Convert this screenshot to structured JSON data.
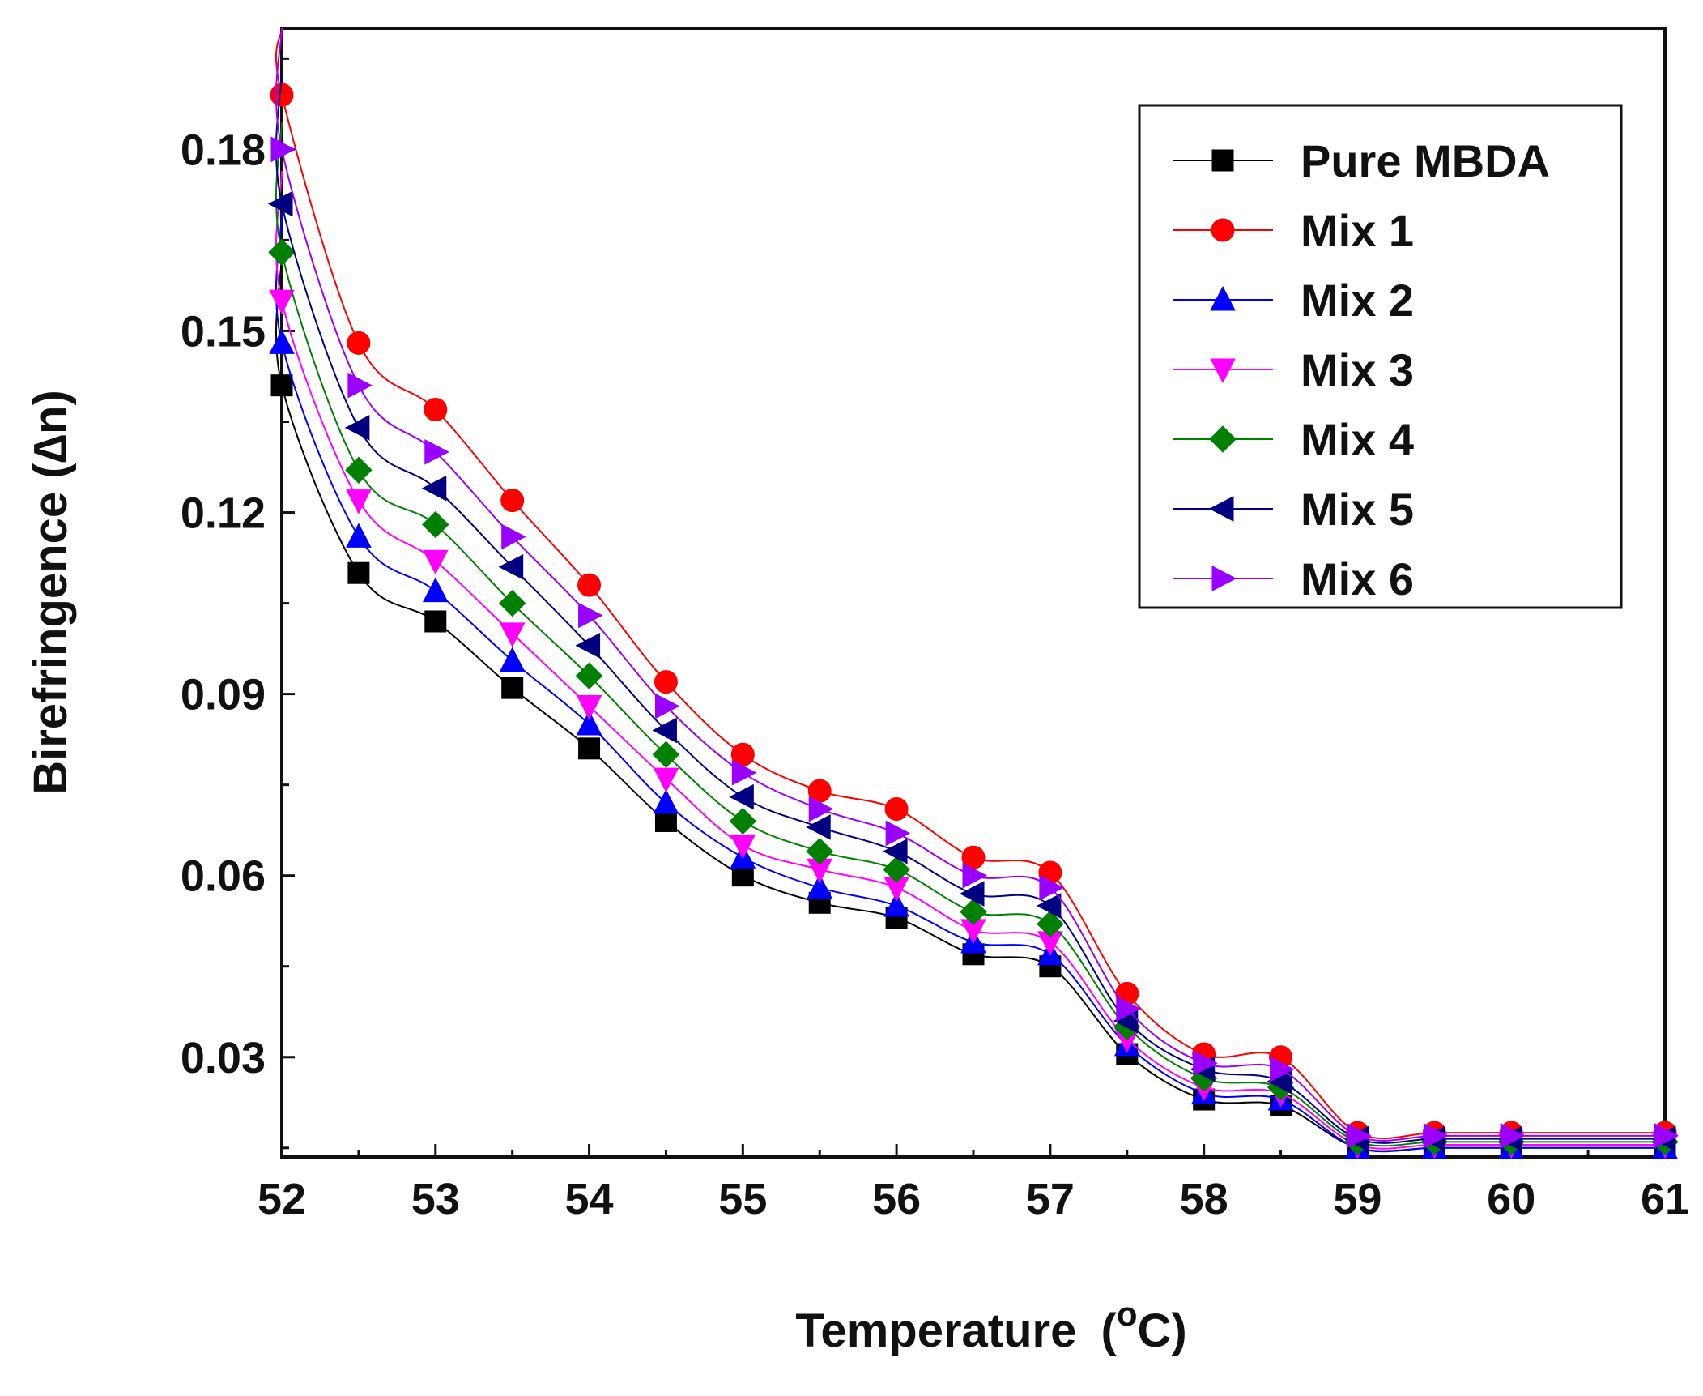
{
  "chart_data": {
    "type": "line",
    "title": "",
    "xlabel": "Temperature",
    "xlabel_unit_prefix": "(",
    "xlabel_unit_sup": "o",
    "xlabel_unit_suffix": "C)",
    "ylabel": "Birefringence (∆n)",
    "xlim": [
      52,
      61
    ],
    "ylim": [
      0.0135,
      0.2
    ],
    "x_ticks": [
      52,
      53,
      54,
      55,
      56,
      57,
      58,
      59,
      60,
      61
    ],
    "x_tick_labels": [
      "52",
      "53",
      "54",
      "55",
      "56",
      "57",
      "58",
      "59",
      "60",
      "61"
    ],
    "y_ticks": [
      0.03,
      0.06,
      0.09,
      0.12,
      0.15,
      0.18
    ],
    "y_tick_labels": [
      "0.03",
      "0.06",
      "0.09",
      "0.12",
      "0.15",
      "0.18"
    ],
    "legend_position": "top-right",
    "x": [
      52,
      52.5,
      53,
      53.5,
      54,
      54.5,
      55,
      55.5,
      56,
      56.5,
      57,
      57.5,
      58,
      58.5,
      59,
      59.5,
      60,
      61
    ],
    "series": [
      {
        "name": "Pure MBDA",
        "color": "#000000",
        "marker": "square",
        "values": [
          0.141,
          0.11,
          0.102,
          0.091,
          0.081,
          0.069,
          0.06,
          0.0555,
          0.053,
          0.047,
          0.045,
          0.0305,
          0.023,
          0.022,
          0.015,
          0.015,
          0.015,
          0.015
        ]
      },
      {
        "name": "Mix 1",
        "color": "#ff0000",
        "marker": "circle",
        "values": [
          0.189,
          0.148,
          0.137,
          0.122,
          0.108,
          0.092,
          0.08,
          0.074,
          0.071,
          0.063,
          0.0605,
          0.0405,
          0.0305,
          0.03,
          0.0175,
          0.0175,
          0.0175,
          0.0175
        ]
      },
      {
        "name": "Mix 2",
        "color": "#0000ff",
        "marker": "triangle-up",
        "values": [
          0.148,
          0.116,
          0.107,
          0.0955,
          0.085,
          0.072,
          0.063,
          0.058,
          0.055,
          0.049,
          0.047,
          0.032,
          0.024,
          0.023,
          0.015,
          0.015,
          0.015,
          0.015
        ]
      },
      {
        "name": "Mix 3",
        "color": "#ff00ff",
        "marker": "triangle-down",
        "values": [
          0.155,
          0.122,
          0.112,
          0.1,
          0.088,
          0.076,
          0.065,
          0.061,
          0.058,
          0.051,
          0.049,
          0.033,
          0.025,
          0.024,
          0.0155,
          0.0155,
          0.0155,
          0.0155
        ]
      },
      {
        "name": "Mix 4",
        "color": "#008000",
        "marker": "diamond",
        "values": [
          0.163,
          0.127,
          0.118,
          0.105,
          0.093,
          0.08,
          0.069,
          0.064,
          0.061,
          0.054,
          0.052,
          0.035,
          0.0265,
          0.025,
          0.016,
          0.016,
          0.016,
          0.016
        ]
      },
      {
        "name": "Mix 5",
        "color": "#000080",
        "marker": "triangle-left",
        "values": [
          0.171,
          0.134,
          0.124,
          0.111,
          0.098,
          0.084,
          0.073,
          0.068,
          0.064,
          0.057,
          0.055,
          0.036,
          0.028,
          0.026,
          0.0165,
          0.0165,
          0.0165,
          0.0165
        ]
      },
      {
        "name": "Mix 6",
        "color": "#9900ff",
        "marker": "triangle-right",
        "values": [
          0.18,
          0.141,
          0.13,
          0.116,
          0.103,
          0.088,
          0.077,
          0.071,
          0.067,
          0.06,
          0.058,
          0.038,
          0.029,
          0.028,
          0.017,
          0.017,
          0.017,
          0.017
        ]
      }
    ]
  }
}
